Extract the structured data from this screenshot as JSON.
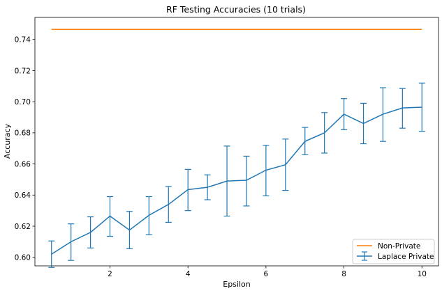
{
  "chart_data": {
    "type": "line",
    "title": "RF Testing Accuracies (10 trials)",
    "xlabel": "Epsilon",
    "ylabel": "Accuracy",
    "xlim": [
      0.075,
      10.425
    ],
    "ylim": [
      0.5945,
      0.7542
    ],
    "xticks": [
      2,
      4,
      6,
      8,
      10
    ],
    "yticks": [
      0.6,
      0.62,
      0.64,
      0.66,
      0.68,
      0.7,
      0.72,
      0.74
    ],
    "ytick_labels": [
      "0.60",
      "0.62",
      "0.64",
      "0.66",
      "0.68",
      "0.70",
      "0.72",
      "0.74"
    ],
    "grid": false,
    "legend_position": "lower-right",
    "colors": {
      "non_private": "#ff7f0e",
      "laplace": "#1f77b4"
    },
    "series": [
      {
        "name": "Non-Private",
        "x": [
          0.5,
          10
        ],
        "y": [
          0.7465,
          0.7465
        ]
      },
      {
        "name": "Laplace Private",
        "x": [
          0.5,
          1.0,
          1.5,
          2.0,
          2.5,
          3.0,
          3.5,
          4.0,
          4.5,
          5.0,
          5.5,
          6.0,
          6.5,
          7.0,
          7.5,
          8.0,
          8.5,
          9.0,
          9.5,
          10.0
        ],
        "y": [
          0.602,
          0.61,
          0.616,
          0.6265,
          0.6175,
          0.627,
          0.634,
          0.6435,
          0.645,
          0.649,
          0.6495,
          0.656,
          0.6595,
          0.6745,
          0.68,
          0.692,
          0.686,
          0.692,
          0.696,
          0.6965
        ],
        "yerr_low": [
          0.5935,
          0.598,
          0.606,
          0.6135,
          0.6055,
          0.6145,
          0.6225,
          0.63,
          0.637,
          0.6265,
          0.633,
          0.6395,
          0.643,
          0.666,
          0.667,
          0.682,
          0.673,
          0.6745,
          0.683,
          0.681
        ],
        "yerr_high": [
          0.6105,
          0.6215,
          0.626,
          0.639,
          0.6295,
          0.639,
          0.6455,
          0.6565,
          0.653,
          0.6715,
          0.665,
          0.672,
          0.676,
          0.6835,
          0.693,
          0.702,
          0.699,
          0.709,
          0.7085,
          0.712
        ]
      }
    ]
  }
}
